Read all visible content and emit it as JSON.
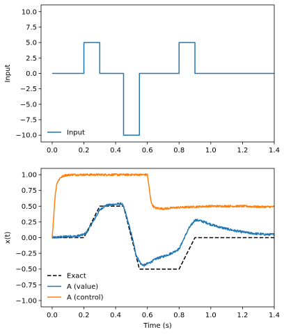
{
  "chart_data": [
    {
      "type": "line",
      "title": "",
      "xlabel": "",
      "ylabel": "Input",
      "xlim": [
        -0.07,
        1.4
      ],
      "ylim": [
        -11.1,
        11.1
      ],
      "xticks": [
        0.0,
        0.2,
        0.4,
        0.6,
        0.8,
        1.0,
        1.2,
        1.4
      ],
      "xtick_labels": [
        "0.0",
        "0.2",
        "0.4",
        "0.6",
        "0.8",
        "1.0",
        "1.2",
        "1.4"
      ],
      "yticks": [
        10.0,
        7.5,
        5.0,
        2.5,
        0.0,
        -2.5,
        -5.0,
        -7.5,
        -10.0
      ],
      "ytick_labels": [
        "10.0",
        "7.5",
        "5.0",
        "2.5",
        "0.0",
        "−2.5",
        "−5.0",
        "−7.5",
        "−10.0"
      ],
      "grid": false,
      "legend_position": "bottom-left",
      "series": [
        {
          "name": "Input",
          "color": "#1f77b4",
          "style": "solid",
          "x": [
            0.0,
            0.2,
            0.2,
            0.3,
            0.3,
            0.45,
            0.45,
            0.55,
            0.55,
            0.8,
            0.8,
            0.9,
            0.9,
            1.4
          ],
          "y": [
            0,
            0,
            5,
            5,
            0,
            0,
            -10,
            -10,
            0,
            0,
            5,
            5,
            0,
            0
          ]
        }
      ]
    },
    {
      "type": "line",
      "title": "",
      "xlabel": "Time (s)",
      "ylabel": "x(t)",
      "xlim": [
        -0.07,
        1.4
      ],
      "ylim": [
        -1.1,
        1.1
      ],
      "xticks": [
        0.0,
        0.2,
        0.4,
        0.6,
        0.8,
        1.0,
        1.2,
        1.4
      ],
      "xtick_labels": [
        "0.0",
        "0.2",
        "0.4",
        "0.6",
        "0.8",
        "1.0",
        "1.2",
        "1.4"
      ],
      "yticks": [
        1.0,
        0.75,
        0.5,
        0.25,
        0.0,
        -0.25,
        -0.5,
        -0.75,
        -1.0
      ],
      "ytick_labels": [
        "1.00",
        "0.75",
        "0.50",
        "0.25",
        "0.00",
        "−0.25",
        "−0.50",
        "−0.75",
        "−1.00"
      ],
      "grid": false,
      "legend_position": "bottom-left",
      "series": [
        {
          "name": "Exact",
          "color": "#000000",
          "style": "dashed",
          "x": [
            0.0,
            0.2,
            0.3,
            0.45,
            0.55,
            0.8,
            0.9,
            1.4
          ],
          "y": [
            0,
            0,
            0.5,
            0.5,
            -0.5,
            -0.5,
            0,
            0
          ]
        },
        {
          "name": "A (value)",
          "color": "#1f77b4",
          "style": "solid",
          "x": [
            0.0,
            0.05,
            0.1,
            0.15,
            0.2,
            0.22,
            0.25,
            0.3,
            0.33,
            0.36,
            0.4,
            0.44,
            0.46,
            0.5,
            0.53,
            0.56,
            0.58,
            0.62,
            0.66,
            0.7,
            0.75,
            0.8,
            0.83,
            0.86,
            0.9,
            0.93,
            0.97,
            1.0,
            1.05,
            1.1,
            1.15,
            1.2,
            1.25,
            1.3,
            1.35,
            1.4
          ],
          "y": [
            0.0,
            0.01,
            0.02,
            0.02,
            0.05,
            0.09,
            0.22,
            0.44,
            0.5,
            0.52,
            0.53,
            0.54,
            0.42,
            0.05,
            -0.28,
            -0.42,
            -0.44,
            -0.39,
            -0.33,
            -0.3,
            -0.25,
            -0.18,
            -0.02,
            0.14,
            0.28,
            0.27,
            0.24,
            0.21,
            0.17,
            0.14,
            0.11,
            0.09,
            0.07,
            0.06,
            0.05,
            0.05
          ]
        },
        {
          "name": "A (control)",
          "color": "#ff7f0e",
          "style": "solid",
          "x": [
            0.0,
            0.01,
            0.02,
            0.03,
            0.05,
            0.08,
            0.12,
            0.2,
            0.3,
            0.4,
            0.5,
            0.6,
            0.61,
            0.62,
            0.63,
            0.65,
            0.7,
            0.8,
            0.9,
            1.0,
            1.1,
            1.2,
            1.3,
            1.4
          ],
          "y": [
            0.0,
            0.35,
            0.7,
            0.87,
            0.95,
            0.99,
            1.0,
            1.0,
            1.0,
            1.0,
            1.0,
            1.0,
            0.82,
            0.62,
            0.52,
            0.47,
            0.46,
            0.48,
            0.49,
            0.5,
            0.5,
            0.5,
            0.49,
            0.49
          ]
        }
      ]
    }
  ]
}
